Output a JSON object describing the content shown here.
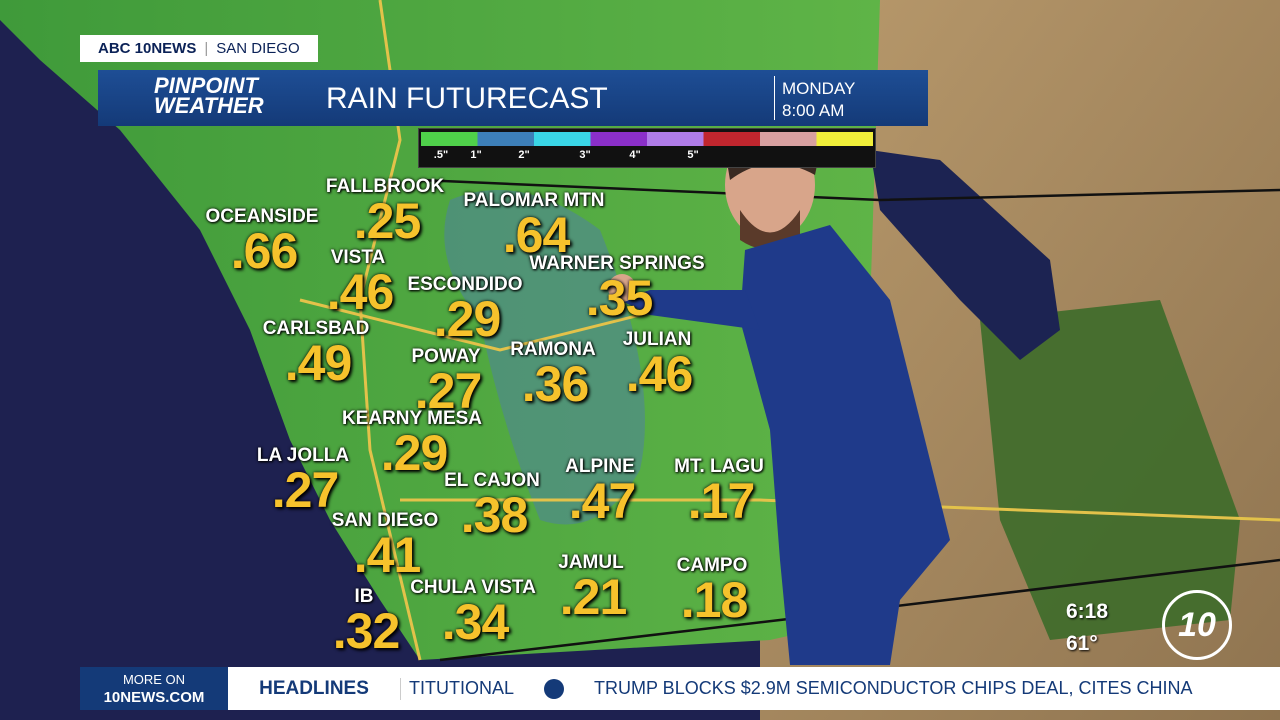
{
  "header": {
    "station": "ABC 10NEWS",
    "market": "SAN DIEGO",
    "logo_line_1": "PINPOINT",
    "logo_line_2": "WEATHER",
    "title": "RAIN FUTURECAST",
    "day": "MONDAY",
    "time": "8:00 AM"
  },
  "legend": {
    "labels": [
      ".5\"",
      "1\"",
      "2\"",
      "3\"",
      "4\"",
      "5\""
    ],
    "colors": [
      "#4fd04a",
      "#3d7fb8",
      "#3ad6e6",
      "#8b2fc9",
      "#b07ce8",
      "#c0262e",
      "#d8a0a0",
      "#f0ee3a"
    ]
  },
  "locations": [
    {
      "name": "FALLBROOK",
      "amount": ".25"
    },
    {
      "name": "OCEANSIDE",
      "amount": ".66"
    },
    {
      "name": "PALOMAR MTN",
      "amount": ".64"
    },
    {
      "name": "VISTA",
      "amount": ".46"
    },
    {
      "name": "ESCONDIDO",
      "amount": ".29"
    },
    {
      "name": "WARNER SPRINGS",
      "amount": ".35"
    },
    {
      "name": "CARLSBAD",
      "amount": ".49"
    },
    {
      "name": "POWAY",
      "amount": ".27"
    },
    {
      "name": "RAMONA",
      "amount": ".36"
    },
    {
      "name": "JULIAN",
      "amount": ".46"
    },
    {
      "name": "KEARNY MESA",
      "amount": ".29"
    },
    {
      "name": "LA JOLLA",
      "amount": ".27"
    },
    {
      "name": "EL CAJON",
      "amount": ".38"
    },
    {
      "name": "ALPINE",
      "amount": ".47"
    },
    {
      "name": "MT. LAGU",
      "amount": ".17"
    },
    {
      "name": "SAN DIEGO",
      "amount": ".41"
    },
    {
      "name": "JAMUL",
      "amount": ".21"
    },
    {
      "name": "CAMPO",
      "amount": ".18"
    },
    {
      "name": "IB",
      "amount": ".32"
    },
    {
      "name": "CHULA VISTA",
      "amount": ".34"
    }
  ],
  "clock": {
    "time": "6:18",
    "temperature": "61°"
  },
  "ticker": {
    "more_on": "MORE ON",
    "site": "10NEWS.COM",
    "section": "HEADLINES",
    "items": [
      "TITUTIONAL",
      "TRUMP BLOCKS $2.9M SEMICONDUCTOR CHIPS DEAL, CITES CHINA"
    ]
  }
}
